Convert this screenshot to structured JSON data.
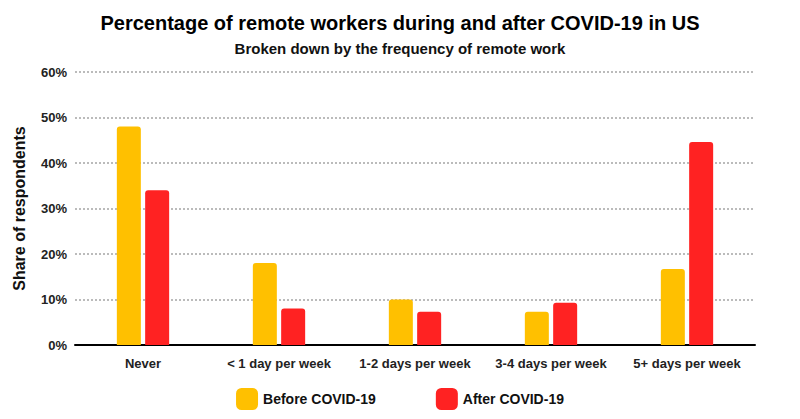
{
  "chart_data": {
    "type": "bar",
    "title": "Percentage of remote workers during and after COVID-19 in US",
    "subtitle": "Broken down by the frequency of remote work",
    "y_label": "Share of respondents",
    "categories": [
      "Never",
      "< 1 day per week",
      "1-2 days per week",
      "3-4 days per week",
      "5+ days per week"
    ],
    "series": [
      {
        "name": "Before COVID-19",
        "color": "#ffc000",
        "values": [
          48,
          18,
          10,
          7.3,
          16.7
        ]
      },
      {
        "name": "After COVID-19",
        "color": "#ff2222",
        "values": [
          34,
          8,
          7.3,
          9.3,
          44.6
        ]
      }
    ],
    "ylim": [
      0,
      60
    ],
    "yticks": [
      {
        "value": 0,
        "label": "0%"
      },
      {
        "value": 10,
        "label": "10%"
      },
      {
        "value": 20,
        "label": "20%"
      },
      {
        "value": 30,
        "label": "30%"
      },
      {
        "value": 40,
        "label": "40%"
      },
      {
        "value": 50,
        "label": "50%"
      },
      {
        "value": 60,
        "label": "60%"
      }
    ],
    "grid": true,
    "legend": "bottom"
  }
}
